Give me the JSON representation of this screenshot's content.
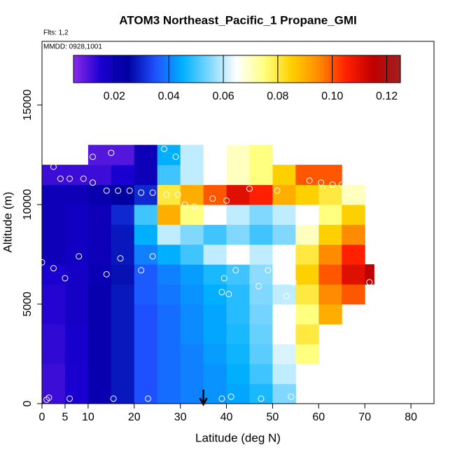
{
  "chart_data": {
    "type": "heatmap",
    "title": "ATOM3 Northeast_Pacific_1 Propane_GMI",
    "note_flights": "Flts: 1,2",
    "note_dates": "MMDD: 0928,1001",
    "xlabel": "Latitude (deg N)",
    "ylabel": "Altitude (m)",
    "xlim": [
      0,
      85
    ],
    "ylim": [
      0,
      18200
    ],
    "xticks": [
      0,
      5,
      10,
      20,
      30,
      40,
      50,
      60,
      70,
      80
    ],
    "yticks": [
      0,
      5000,
      10000,
      15000
    ],
    "x_edges": [
      0,
      5,
      10,
      15,
      20,
      25,
      30,
      35,
      40,
      45,
      50,
      55,
      60,
      65,
      70,
      72
    ],
    "y_edges": [
      0,
      1000,
      2000,
      3000,
      4000,
      5000,
      6000,
      7000,
      8000,
      9000,
      10000,
      11000,
      12000,
      13000
    ],
    "values": [
      [
        0.012,
        0.015,
        0.022,
        0.028,
        0.035,
        0.038,
        0.04,
        0.042,
        0.044,
        0.047,
        0.055,
        null,
        null,
        null,
        null
      ],
      [
        0.012,
        0.015,
        0.022,
        0.028,
        0.035,
        0.038,
        0.04,
        0.042,
        0.045,
        0.05,
        0.06,
        null,
        null,
        null,
        null
      ],
      [
        0.013,
        0.016,
        0.022,
        0.028,
        0.035,
        0.038,
        0.04,
        0.043,
        0.046,
        0.052,
        0.062,
        0.075,
        null,
        null,
        null
      ],
      [
        0.013,
        0.016,
        0.022,
        0.028,
        0.035,
        0.038,
        0.041,
        0.044,
        0.047,
        0.053,
        0.065,
        0.08,
        null,
        null,
        null
      ],
      [
        0.014,
        0.017,
        0.022,
        0.028,
        0.035,
        0.038,
        0.041,
        0.044,
        0.048,
        0.054,
        0.065,
        0.075,
        0.09,
        null,
        null
      ],
      [
        0.014,
        0.017,
        0.022,
        0.028,
        0.036,
        0.039,
        0.042,
        0.045,
        0.048,
        0.055,
        0.06,
        0.08,
        0.095,
        0.1,
        null
      ],
      [
        0.015,
        0.017,
        0.021,
        0.027,
        0.036,
        0.04,
        0.043,
        0.047,
        0.05,
        0.056,
        0.065,
        0.085,
        0.1,
        0.11,
        0.115
      ],
      [
        0.02,
        0.018,
        0.02,
        0.028,
        0.04,
        0.045,
        0.05,
        0.06,
        0.065,
        0.06,
        0.065,
        0.08,
        0.095,
        0.105,
        null
      ],
      [
        0.02,
        0.018,
        0.02,
        0.028,
        0.045,
        0.06,
        0.055,
        0.05,
        0.055,
        0.05,
        0.055,
        0.07,
        0.085,
        0.095,
        null
      ],
      [
        0.02,
        0.018,
        0.02,
        0.03,
        0.05,
        0.09,
        0.075,
        0.065,
        0.06,
        0.055,
        0.06,
        0.065,
        0.075,
        0.085,
        null
      ],
      [
        0.02,
        0.02,
        0.022,
        0.025,
        0.03,
        0.08,
        0.09,
        0.1,
        0.11,
        0.105,
        0.09,
        0.085,
        0.08,
        0.07,
        null
      ],
      [
        0.012,
        0.012,
        0.012,
        0.015,
        0.02,
        0.05,
        0.06,
        0.065,
        0.07,
        0.075,
        0.085,
        0.1,
        0.1,
        null,
        null
      ],
      [
        null,
        null,
        0.01,
        0.01,
        0.02,
        0.045,
        0.06,
        0.065,
        0.07,
        0.075,
        null,
        null,
        null,
        null,
        null
      ]
    ],
    "clim": [
      0.005,
      0.125
    ],
    "colorscale": [
      "#8b2be8",
      "#1a00d0",
      "#0000a0",
      "#1e50ff",
      "#00b0ff",
      "#80d8ff",
      "#ffffff",
      "#ffff80",
      "#ffd000",
      "#ff8c00",
      "#ff2000",
      "#c00000",
      "#a02020"
    ],
    "cticks": [
      0.02,
      0.04,
      0.06,
      0.08,
      {
        "value": 0.1,
        "label": "0.10"
      },
      0.12
    ],
    "points": {
      "x": [
        1,
        1.5,
        6,
        15.5,
        23,
        39,
        41,
        47.5,
        54,
        0,
        2.5,
        5,
        8,
        14,
        17,
        21.5,
        24,
        39,
        40.5,
        47,
        49,
        53,
        54.5,
        71,
        42,
        39.5,
        2.5,
        4,
        6,
        9,
        11,
        11,
        15,
        26.5,
        29,
        14,
        16.5,
        19,
        21.5,
        24,
        27,
        29.5,
        31,
        33,
        37,
        40,
        45,
        51,
        58,
        60.5,
        63,
        65
      ],
      "y": [
        200,
        300,
        250,
        250,
        250,
        250,
        350,
        250,
        350,
        7100,
        6800,
        6300,
        7400,
        6500,
        7300,
        6700,
        7400,
        5600,
        5500,
        5900,
        6700,
        5400,
        6100,
        6100,
        6700,
        6300,
        11900,
        11300,
        11300,
        11300,
        11100,
        12400,
        12600,
        12800,
        12400,
        10700,
        10700,
        10700,
        10600,
        10600,
        10500,
        10500,
        10000,
        9900,
        10300,
        10200,
        10800,
        10700,
        11200,
        11100,
        11000,
        11000
      ]
    },
    "marker_x": 35
  }
}
